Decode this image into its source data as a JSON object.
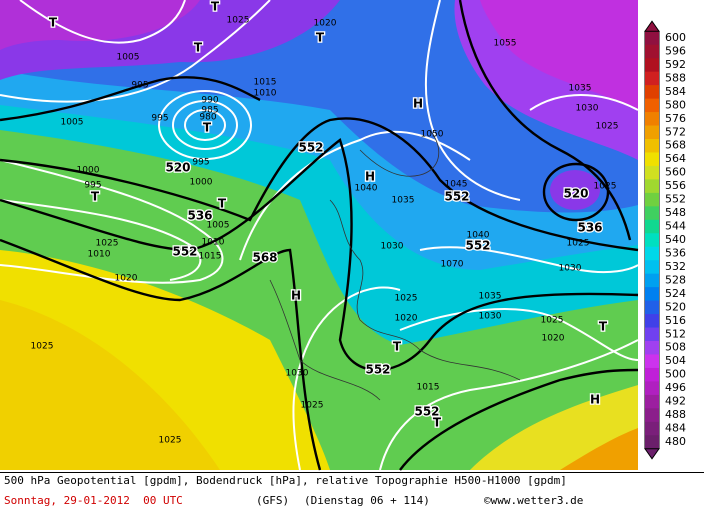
{
  "colorbar": {
    "ticks": [
      600,
      596,
      592,
      588,
      584,
      580,
      576,
      572,
      568,
      564,
      560,
      556,
      552,
      548,
      544,
      540,
      536,
      532,
      528,
      524,
      520,
      516,
      512,
      508,
      504,
      500,
      496,
      492,
      488,
      484,
      480
    ],
    "colors": [
      "#901040",
      "#a01030",
      "#b01020",
      "#d02020",
      "#e04000",
      "#f06000",
      "#f08000",
      "#f0a000",
      "#f0c000",
      "#f0e000",
      "#d0e020",
      "#a0d830",
      "#70d040",
      "#40d060",
      "#10d890",
      "#00e0c0",
      "#00d8e8",
      "#00c0f0",
      "#00a0f0",
      "#0080f0",
      "#2060e8",
      "#4040e8",
      "#7040f0",
      "#a040f0",
      "#cc33ee",
      "#c020d8",
      "#b020c0",
      "#9c1fa0",
      "#8b1e8b",
      "#7a1f7a",
      "#6b1f6b"
    ]
  },
  "map_labels": [
    "1005",
    "995",
    "T",
    "T",
    "T",
    "1025",
    "1020",
    "T",
    "1005",
    "990",
    "985",
    "980",
    "T",
    "1015",
    "1010",
    "995",
    "520",
    "995",
    "1000",
    "995",
    "T",
    "1000",
    "T",
    "536",
    "1005",
    "1010",
    "552",
    "1015",
    "1025",
    "1010",
    "1020",
    "568",
    "H",
    "552",
    "H",
    "1050",
    "H",
    "1040",
    "1035",
    "1045",
    "552",
    "1030",
    "1040",
    "552",
    "1070",
    "1035",
    "1025",
    "1020",
    "1030",
    "T",
    "552",
    "1030",
    "1025",
    "1015",
    "552",
    "T",
    "1025",
    "1025",
    "1055",
    "1035",
    "1030",
    "1025",
    "520",
    "1025",
    "536",
    "1025",
    "1030",
    "1025",
    "T",
    "1020",
    "H"
  ],
  "caption": {
    "line1": "500 hPa Geopotential [gpdm], Bodendruck [hPa], relative Topographie H500-H1000 [gpdm]",
    "date": "Sonntag, 29-01-2012  00 UTC",
    "model": "(GFS)",
    "forecast": "(Dienstag 06 + 114)",
    "credit": "©www.wetter3.de"
  }
}
